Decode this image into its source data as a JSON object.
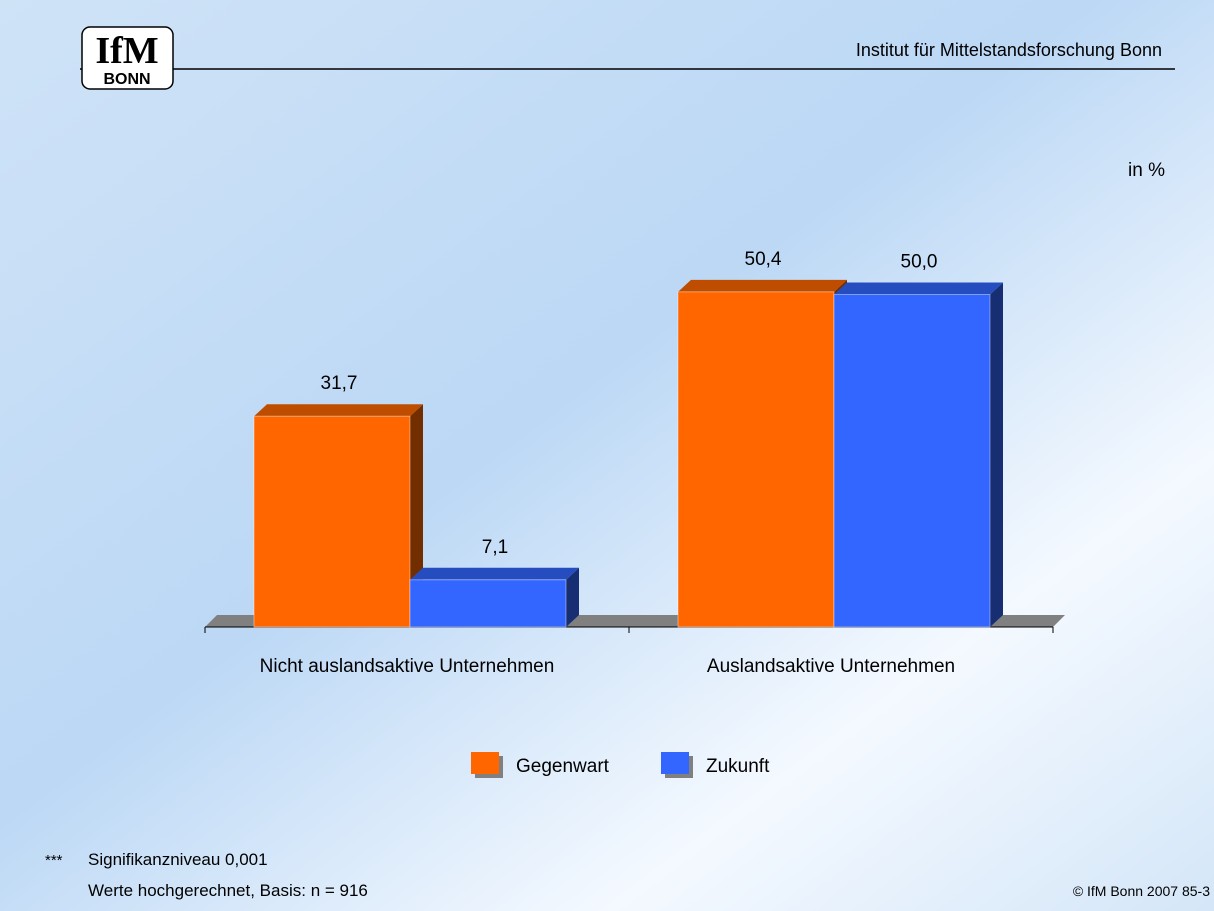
{
  "header": {
    "logo_top": "IfM",
    "logo_bottom": "BONN",
    "institute": "Institut für Mittelstandsforschung Bonn"
  },
  "chart_data": {
    "type": "bar3d",
    "unit_label": "in %",
    "categories": [
      "Nicht auslandsaktive Unternehmen",
      "Auslandsaktive Unternehmen"
    ],
    "series": [
      {
        "name": "Gegenwart",
        "color": "#ff6600",
        "values": [
          31.7,
          50.4
        ],
        "value_labels": [
          "31,7",
          "50,4"
        ]
      },
      {
        "name": "Zukunft",
        "color": "#3366ff",
        "values": [
          7.1,
          50.0
        ],
        "value_labels": [
          "7,1",
          "50,0"
        ]
      }
    ]
  },
  "footer": {
    "stars": "***",
    "note1": "Signifikanzniveau 0,001",
    "note2": "Werte hochgerechnet, Basis: n = 916",
    "copyright": "© IfM Bonn 2007  85-3"
  }
}
